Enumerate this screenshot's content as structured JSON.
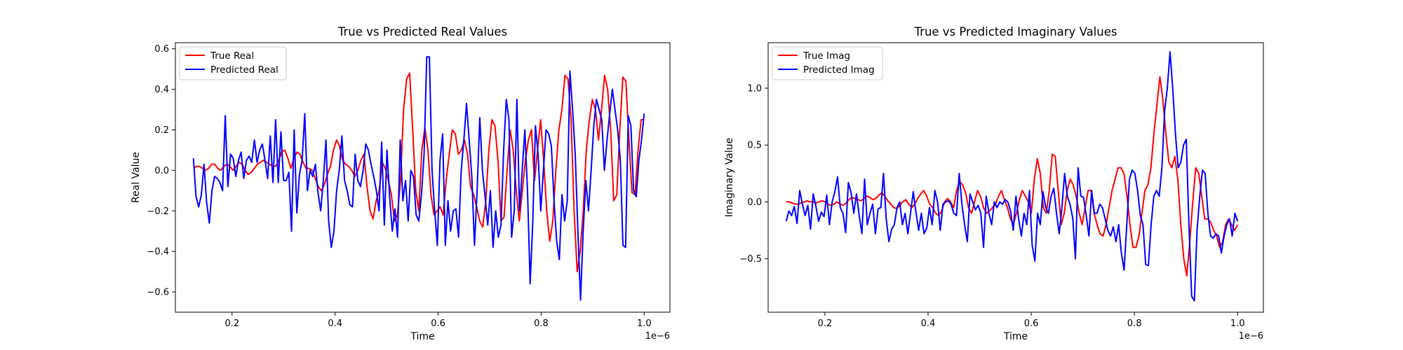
{
  "chart_data": [
    {
      "type": "line",
      "title": "True vs Predicted Real Values",
      "xlabel": "Time",
      "ylabel": "Real Value",
      "x_offset_label": "1e−6",
      "xlim": [
        0.09,
        1.05
      ],
      "ylim": [
        -0.7,
        0.63
      ],
      "xticks": [
        0.2,
        0.4,
        0.6,
        0.8,
        1.0
      ],
      "xtick_labels": [
        "0.2",
        "0.4",
        "0.6",
        "0.8",
        "1.0"
      ],
      "yticks": [
        -0.6,
        -0.4,
        -0.2,
        0.0,
        0.2,
        0.4,
        0.6
      ],
      "ytick_labels": [
        "−0.6",
        "−0.4",
        "−0.2",
        "0.0",
        "0.2",
        "0.4",
        "0.6"
      ],
      "grid": false,
      "legend": "top-left",
      "x_start": 0.125,
      "x_end": 1.0,
      "series": [
        {
          "name": "True Real",
          "color": "#ff0000",
          "values": [
            0.01,
            0.02,
            0.02,
            0.01,
            0.0,
            0.01,
            0.03,
            0.03,
            0.01,
            0.0,
            0.02,
            0.03,
            0.02,
            0.0,
            0.02,
            0.04,
            0.03,
            0.0,
            -0.02,
            -0.01,
            0.01,
            0.03,
            0.04,
            0.05,
            0.04,
            0.03,
            0.02,
            0.02,
            0.05,
            0.09,
            0.1,
            0.06,
            0.01,
            0.06,
            0.09,
            0.08,
            0.04,
            0.01,
            0.01,
            0.0,
            -0.04,
            -0.08,
            -0.1,
            -0.07,
            -0.02,
            0.02,
            0.1,
            0.15,
            0.12,
            0.05,
            0.03,
            0.02,
            0.0,
            -0.03,
            0.0,
            0.05,
            0.08,
            -0.08,
            -0.2,
            -0.24,
            -0.15,
            -0.1,
            0.04,
            0.01,
            -0.05,
            -0.12,
            -0.25,
            -0.22,
            -0.05,
            0.3,
            0.45,
            0.48,
            0.2,
            -0.1,
            -0.2,
            0.1,
            0.21,
            0.1,
            -0.12,
            -0.22,
            -0.2,
            -0.18,
            -0.22,
            -0.05,
            0.08,
            0.2,
            0.18,
            0.08,
            0.1,
            0.15,
            0.08,
            -0.08,
            -0.12,
            -0.18,
            -0.25,
            -0.28,
            -0.15,
            0.1,
            0.25,
            0.22,
            0.05,
            -0.25,
            -0.23,
            0.0,
            0.2,
            0.1,
            -0.1,
            -0.25,
            -0.1,
            0.05,
            0.15,
            0.2,
            -0.05,
            0.1,
            0.25,
            0.05,
            -0.2,
            -0.35,
            -0.25,
            0.0,
            0.2,
            0.3,
            0.47,
            0.45,
            0.25,
            -0.2,
            -0.5,
            -0.4,
            -0.2,
            0.1,
            0.25,
            0.35,
            0.3,
            0.15,
            0.3,
            0.47,
            0.4,
            0.2,
            -0.15,
            -0.12,
            0.2,
            0.46,
            0.44,
            0.15,
            -0.11,
            -0.12,
            0.1,
            0.25,
            0.25
          ]
        },
        {
          "name": "Predicted Real",
          "color": "#0000ff",
          "values": [
            0.06,
            -0.13,
            -0.18,
            -0.12,
            0.03,
            -0.16,
            -0.26,
            -0.1,
            -0.03,
            -0.04,
            -0.06,
            -0.1,
            0.27,
            -0.08,
            0.08,
            0.06,
            -0.03,
            0.05,
            0.09,
            -0.04,
            0.05,
            0.07,
            0.04,
            0.15,
            0.04,
            0.1,
            0.13,
            0.05,
            -0.04,
            0.17,
            -0.06,
            0.25,
            -0.06,
            0.19,
            -0.05,
            -0.05,
            -0.01,
            -0.3,
            0.2,
            -0.21,
            -0.02,
            0.05,
            0.28,
            -0.1,
            0.0,
            -0.03,
            0.03,
            -0.11,
            -0.2,
            -0.05,
            0.15,
            -0.25,
            -0.38,
            -0.3,
            -0.1,
            0.0,
            0.17,
            -0.05,
            -0.1,
            -0.17,
            -0.18,
            0.08,
            -0.05,
            -0.08,
            0.0,
            0.13,
            0.1,
            0.03,
            -0.03,
            -0.1,
            -0.2,
            0.14,
            -0.27,
            0.1,
            -0.13,
            -0.3,
            -0.19,
            -0.33,
            0.15,
            -0.15,
            -0.05,
            -0.25,
            0.0,
            -0.03,
            -0.22,
            -0.25,
            -0.12,
            0.08,
            0.56,
            0.56,
            0.0,
            -0.2,
            -0.37,
            0.05,
            0.18,
            -0.37,
            -0.15,
            -0.3,
            -0.2,
            -0.19,
            -0.33,
            0.0,
            0.15,
            0.33,
            0.15,
            -0.03,
            -0.37,
            -0.1,
            0.26,
            0.0,
            -0.13,
            -0.27,
            -0.1,
            -0.38,
            -0.2,
            -0.33,
            -0.27,
            0.1,
            0.35,
            0.25,
            -0.33,
            -0.2,
            0.35,
            -0.2,
            0.0,
            0.2,
            -0.1,
            -0.56,
            -0.25,
            0.22,
            0.08,
            -0.2,
            0.0,
            0.2,
            0.18,
            0.12,
            -0.15,
            -0.35,
            -0.44,
            -0.12,
            -0.25,
            -0.15,
            0.49,
            0.3,
            0.08,
            -0.3,
            -0.64,
            -0.3,
            -0.05,
            -0.2,
            0.0,
            0.22,
            0.35,
            0.3,
            0.25,
            0.0,
            0.15,
            0.28,
            0.4,
            0.3,
            0.2,
            0.05,
            -0.37,
            -0.38,
            0.27,
            0.22,
            -0.1,
            -0.13,
            0.05,
            0.15,
            0.28
          ]
        }
      ]
    },
    {
      "type": "line",
      "title": "True vs Predicted Imaginary Values",
      "xlabel": "Time",
      "ylabel": "Imaginary Value",
      "x_offset_label": "1e−6",
      "xlim": [
        0.09,
        1.05
      ],
      "ylim": [
        -0.97,
        1.4
      ],
      "xticks": [
        0.2,
        0.4,
        0.6,
        0.8,
        1.0
      ],
      "xtick_labels": [
        "0.2",
        "0.4",
        "0.6",
        "0.8",
        "1.0"
      ],
      "yticks": [
        -0.5,
        0.0,
        0.5,
        1.0
      ],
      "ytick_labels": [
        "−0.5",
        "0.0",
        "0.5",
        "1.0"
      ],
      "grid": false,
      "legend": "top-left",
      "x_start": 0.125,
      "x_end": 1.0,
      "series": [
        {
          "name": "True Imag",
          "color": "#ff0000",
          "values": [
            0.0,
            0.0,
            -0.01,
            -0.02,
            -0.02,
            -0.01,
            0.0,
            0.01,
            0.0,
            0.0,
            -0.01,
            0.0,
            0.01,
            0.0,
            -0.02,
            -0.03,
            -0.02,
            0.0,
            -0.02,
            -0.03,
            -0.01,
            0.02,
            0.04,
            0.03,
            0.02,
            0.01,
            0.03,
            0.05,
            0.04,
            0.02,
            0.03,
            0.06,
            0.08,
            0.05,
            0.01,
            -0.02,
            -0.05,
            -0.06,
            -0.03,
            0.0,
            0.02,
            -0.02,
            -0.05,
            -0.02,
            0.03,
            0.07,
            0.1,
            0.05,
            -0.02,
            -0.05,
            -0.1,
            -0.12,
            -0.08,
            0.0,
            0.03,
            0.0,
            -0.05,
            0.1,
            0.18,
            0.15,
            0.08,
            -0.05,
            -0.1,
            0.0,
            0.1,
            0.05,
            -0.05,
            -0.1,
            -0.08,
            -0.05,
            -0.02,
            0.05,
            0.1,
            0.02,
            -0.05,
            -0.15,
            -0.2,
            -0.1,
            0.02,
            0.1,
            0.05,
            0.0,
            -0.1,
            0.2,
            0.38,
            0.25,
            -0.05,
            -0.1,
            0.1,
            0.42,
            0.4,
            0.1,
            -0.2,
            -0.1,
            0.1,
            0.2,
            0.15,
            0.05,
            -0.1,
            -0.2,
            -0.05,
            0.1,
            0.1,
            -0.1,
            -0.2,
            -0.28,
            -0.3,
            -0.2,
            -0.05,
            0.1,
            0.2,
            0.3,
            0.3,
            0.25,
            0.05,
            -0.2,
            -0.4,
            -0.4,
            -0.3,
            -0.1,
            0.1,
            0.15,
            0.3,
            0.6,
            0.85,
            1.1,
            0.9,
            0.6,
            0.35,
            0.3,
            0.4,
            0.2,
            -0.2,
            -0.5,
            -0.65,
            -0.35,
            0.0,
            0.3,
            0.25,
            0.05,
            -0.15,
            -0.15,
            -0.18,
            -0.25,
            -0.3,
            -0.4,
            -0.35,
            -0.2,
            -0.15,
            -0.2,
            -0.25,
            -0.2
          ]
        },
        {
          "name": "Predicted Imag",
          "color": "#0000ff",
          "values": [
            -0.17,
            -0.08,
            -0.12,
            -0.04,
            -0.19,
            0.1,
            -0.02,
            -0.12,
            -0.03,
            -0.24,
            0.07,
            -0.04,
            -0.17,
            -0.09,
            -0.13,
            0.06,
            -0.2,
            0.0,
            0.09,
            0.22,
            -0.05,
            -0.1,
            -0.27,
            0.17,
            0.08,
            -0.1,
            0.07,
            -0.12,
            -0.28,
            0.2,
            -0.2,
            -0.1,
            -0.02,
            -0.28,
            -0.06,
            -0.05,
            0.25,
            -0.15,
            -0.35,
            -0.24,
            -0.2,
            -0.05,
            0.0,
            -0.2,
            -0.1,
            -0.28,
            -0.1,
            0.09,
            -0.09,
            -0.25,
            -0.1,
            -0.28,
            -0.23,
            -0.05,
            -0.2,
            0.1,
            0.0,
            -0.25,
            -0.02,
            0.0,
            0.01,
            -0.02,
            -0.1,
            -0.12,
            0.25,
            -0.02,
            -0.2,
            -0.35,
            0.07,
            0.0,
            -0.07,
            -0.03,
            -0.1,
            -0.4,
            0.05,
            -0.1,
            -0.2,
            0.0,
            -0.05,
            0.0,
            -0.02,
            0.02,
            0.0,
            -0.08,
            -0.25,
            0.05,
            -0.15,
            -0.3,
            -0.1,
            -0.2,
            0.1,
            -0.38,
            -0.52,
            -0.1,
            -0.2,
            0.09,
            -0.05,
            -0.1,
            0.05,
            0.12,
            -0.1,
            -0.28,
            -0.05,
            0.25,
            0.05,
            -0.02,
            -0.14,
            -0.5,
            0.3,
            0.05,
            0.04,
            -0.12,
            -0.3,
            0.1,
            -0.1,
            -0.1,
            -0.02,
            -0.05,
            -0.15,
            -0.25,
            -0.3,
            -0.22,
            -0.35,
            -0.2,
            -0.45,
            -0.6,
            -0.2,
            0.2,
            0.28,
            0.25,
            0.1,
            -0.12,
            -0.2,
            -0.55,
            -0.56,
            -0.2,
            0.05,
            0.1,
            0.05,
            0.3,
            0.8,
            1.0,
            1.32,
            1.0,
            0.6,
            0.3,
            0.35,
            0.5,
            0.55,
            -0.2,
            -0.83,
            -0.87,
            -0.25,
            0.05,
            0.28,
            0.25,
            -0.1,
            -0.3,
            -0.32,
            -0.28,
            -0.3,
            -0.45,
            -0.3,
            -0.2,
            -0.15,
            -0.3,
            -0.1,
            -0.17
          ]
        }
      ]
    }
  ]
}
